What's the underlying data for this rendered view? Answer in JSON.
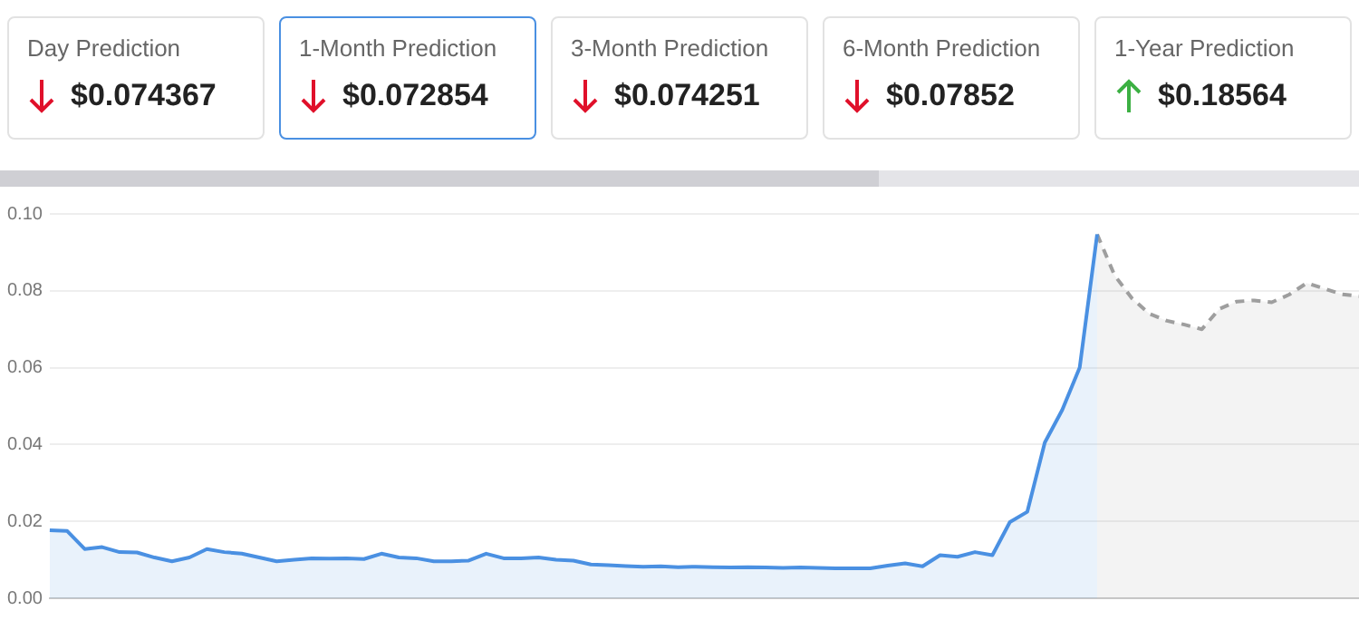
{
  "chart_data": {
    "type": "area",
    "annotations": [
      "Day Prediction",
      "$0.074367",
      "1-Month Prediction",
      "$0.072854",
      "3-Month Prediction",
      "$0.074251",
      "6-Month Prediction",
      "$0.07852",
      "1-Year Prediction",
      "$0.18564"
    ],
    "categories": [
      null,
      null,
      null,
      null,
      null,
      null,
      null,
      null,
      null,
      null,
      null,
      null,
      null,
      null,
      null,
      null,
      null,
      null,
      null,
      null,
      null,
      null,
      null,
      null,
      null,
      null,
      null,
      null,
      null,
      null,
      null,
      null,
      null,
      null,
      null,
      null,
      null,
      null,
      null,
      null,
      null,
      null,
      null,
      null,
      null,
      null,
      null,
      null,
      null,
      null,
      null,
      null,
      null,
      null,
      null,
      null,
      null,
      null,
      null,
      null,
      null,
      null,
      null,
      null,
      null,
      null,
      null,
      null,
      null,
      null,
      null,
      null,
      null,
      null,
      null,
      null
    ],
    "series": [
      {
        "type": "area",
        "color": "#4a90e2",
        "line_style": "solid",
        "values": [
          0.0177,
          0.0175,
          0.0128,
          0.0133,
          0.012,
          0.0119,
          0.0106,
          0.0096,
          0.0106,
          0.0128,
          0.012,
          0.0116,
          0.0106,
          0.0096,
          0.01,
          0.0104,
          0.0103,
          0.0104,
          0.0102,
          0.0116,
          0.0106,
          0.0104,
          0.0096,
          0.0096,
          0.0098,
          0.0116,
          0.0104,
          0.0104,
          0.0106,
          0.01,
          0.0098,
          0.0088,
          0.0086,
          0.0084,
          0.0082,
          0.0083,
          0.0081,
          0.0082,
          0.0081,
          0.008,
          0.0081,
          0.008,
          0.0079,
          0.008,
          0.0079,
          0.0078,
          0.0078,
          0.0078,
          0.0085,
          0.0091,
          0.0083,
          0.0112,
          0.0108,
          0.012,
          0.0112,
          0.0198,
          0.0225,
          0.0405,
          0.049,
          0.06,
          0.0947,
          null,
          null,
          null,
          null,
          null,
          null,
          null,
          null,
          null,
          null,
          null,
          null,
          null,
          null,
          null
        ]
      },
      {
        "type": "area",
        "color": "#9e9e9e",
        "line_style": "dashed",
        "values": [
          null,
          null,
          null,
          null,
          null,
          null,
          null,
          null,
          null,
          null,
          null,
          null,
          null,
          null,
          null,
          null,
          null,
          null,
          null,
          null,
          null,
          null,
          null,
          null,
          null,
          null,
          null,
          null,
          null,
          null,
          null,
          null,
          null,
          null,
          null,
          null,
          null,
          null,
          null,
          null,
          null,
          null,
          null,
          null,
          null,
          null,
          null,
          null,
          null,
          null,
          null,
          null,
          null,
          null,
          null,
          null,
          null,
          null,
          null,
          null,
          0.0947,
          0.084,
          0.078,
          0.074,
          0.0722,
          0.0712,
          0.07,
          0.0753,
          0.0772,
          0.0775,
          0.077,
          0.079,
          0.082,
          0.0806,
          0.0791,
          0.0786
        ]
      }
    ],
    "ylim": [
      0,
      0.1
    ],
    "yticks": [
      {
        "value": 0,
        "label": "0.00"
      },
      {
        "value": 0.02,
        "label": "0.02"
      },
      {
        "value": 0.04,
        "label": "0.04"
      },
      {
        "value": 0.06,
        "label": "0.06"
      },
      {
        "value": 0.08,
        "label": "0.08"
      },
      {
        "value": 0.1,
        "label": "0.10"
      }
    ],
    "grid": "y",
    "legend": false,
    "tick_labels": "y",
    "marker": "none"
  }
}
